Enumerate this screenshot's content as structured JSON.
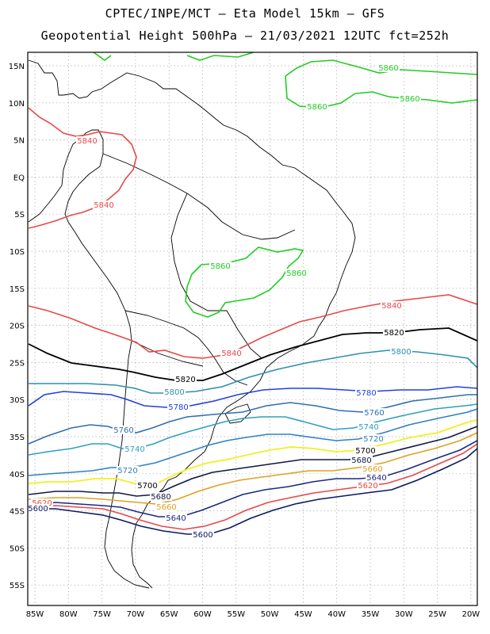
{
  "header": {
    "title_line1": "CPTEC/INPE/MCT –  Eta Model 15km – GFS",
    "title_line2": "Geopotential Height 500hPa – 21/03/2021 12UTC fct=252h"
  },
  "map": {
    "lat_labels": [
      "15N",
      "10N",
      "5N",
      "EQ",
      "5S",
      "10S",
      "15S",
      "20S",
      "25S",
      "30S",
      "35S",
      "40S",
      "45S",
      "50S",
      "55S"
    ],
    "lon_labels": [
      "85W",
      "80W",
      "75W",
      "70W",
      "65W",
      "60W",
      "55W",
      "50W",
      "45W",
      "40W",
      "35W",
      "30W",
      "25W",
      "20W"
    ],
    "contour_colors": {
      "5860": "#22cc22",
      "5840": "#e84848",
      "5820": "#000000",
      "5800": "#2e8fb0",
      "5780": "#2040e0",
      "5760": "#2e6fb0",
      "5740": "#2e9fc0",
      "5720": "#3080c0",
      "5700": "#f0f020",
      "5680": "#101840",
      "5660": "#e0a020",
      "5640": "#1a2a80",
      "5620": "#e84848",
      "5600": "#0a1a60"
    },
    "contour_labels": [
      {
        "text": "5860",
        "level": "5860"
      },
      {
        "text": "5860",
        "level": "5860"
      },
      {
        "text": "5860",
        "level": "5860"
      },
      {
        "text": "5860",
        "level": "5860"
      },
      {
        "text": "5860",
        "level": "5860"
      },
      {
        "text": "5840",
        "level": "5840"
      },
      {
        "text": "5840",
        "level": "5840"
      },
      {
        "text": "5840",
        "level": "5840"
      },
      {
        "text": "5840",
        "level": "5840"
      },
      {
        "text": "5820",
        "level": "5820"
      },
      {
        "text": "5820",
        "level": "5820"
      },
      {
        "text": "5800",
        "level": "5800"
      },
      {
        "text": "5800",
        "level": "5800"
      },
      {
        "text": "5780",
        "level": "5780"
      },
      {
        "text": "5780",
        "level": "5780"
      },
      {
        "text": "5760",
        "level": "5760"
      },
      {
        "text": "5760",
        "level": "5760"
      },
      {
        "text": "5740",
        "level": "5740"
      },
      {
        "text": "5740",
        "level": "5740"
      },
      {
        "text": "5720",
        "level": "5720"
      },
      {
        "text": "5720",
        "level": "5720"
      },
      {
        "text": "5700",
        "level": "5700"
      },
      {
        "text": "5700",
        "level": "5700"
      },
      {
        "text": "5680",
        "level": "5680"
      },
      {
        "text": "5680",
        "level": "5680"
      },
      {
        "text": "5660",
        "level": "5660"
      },
      {
        "text": "5660",
        "level": "5660"
      },
      {
        "text": "5640",
        "level": "5640"
      },
      {
        "text": "5640",
        "level": "5640"
      },
      {
        "text": "5620",
        "level": "5620"
      },
      {
        "text": "5620",
        "level": "5620"
      },
      {
        "text": "5600",
        "level": "5600"
      },
      {
        "text": "5600",
        "level": "5600"
      }
    ]
  }
}
